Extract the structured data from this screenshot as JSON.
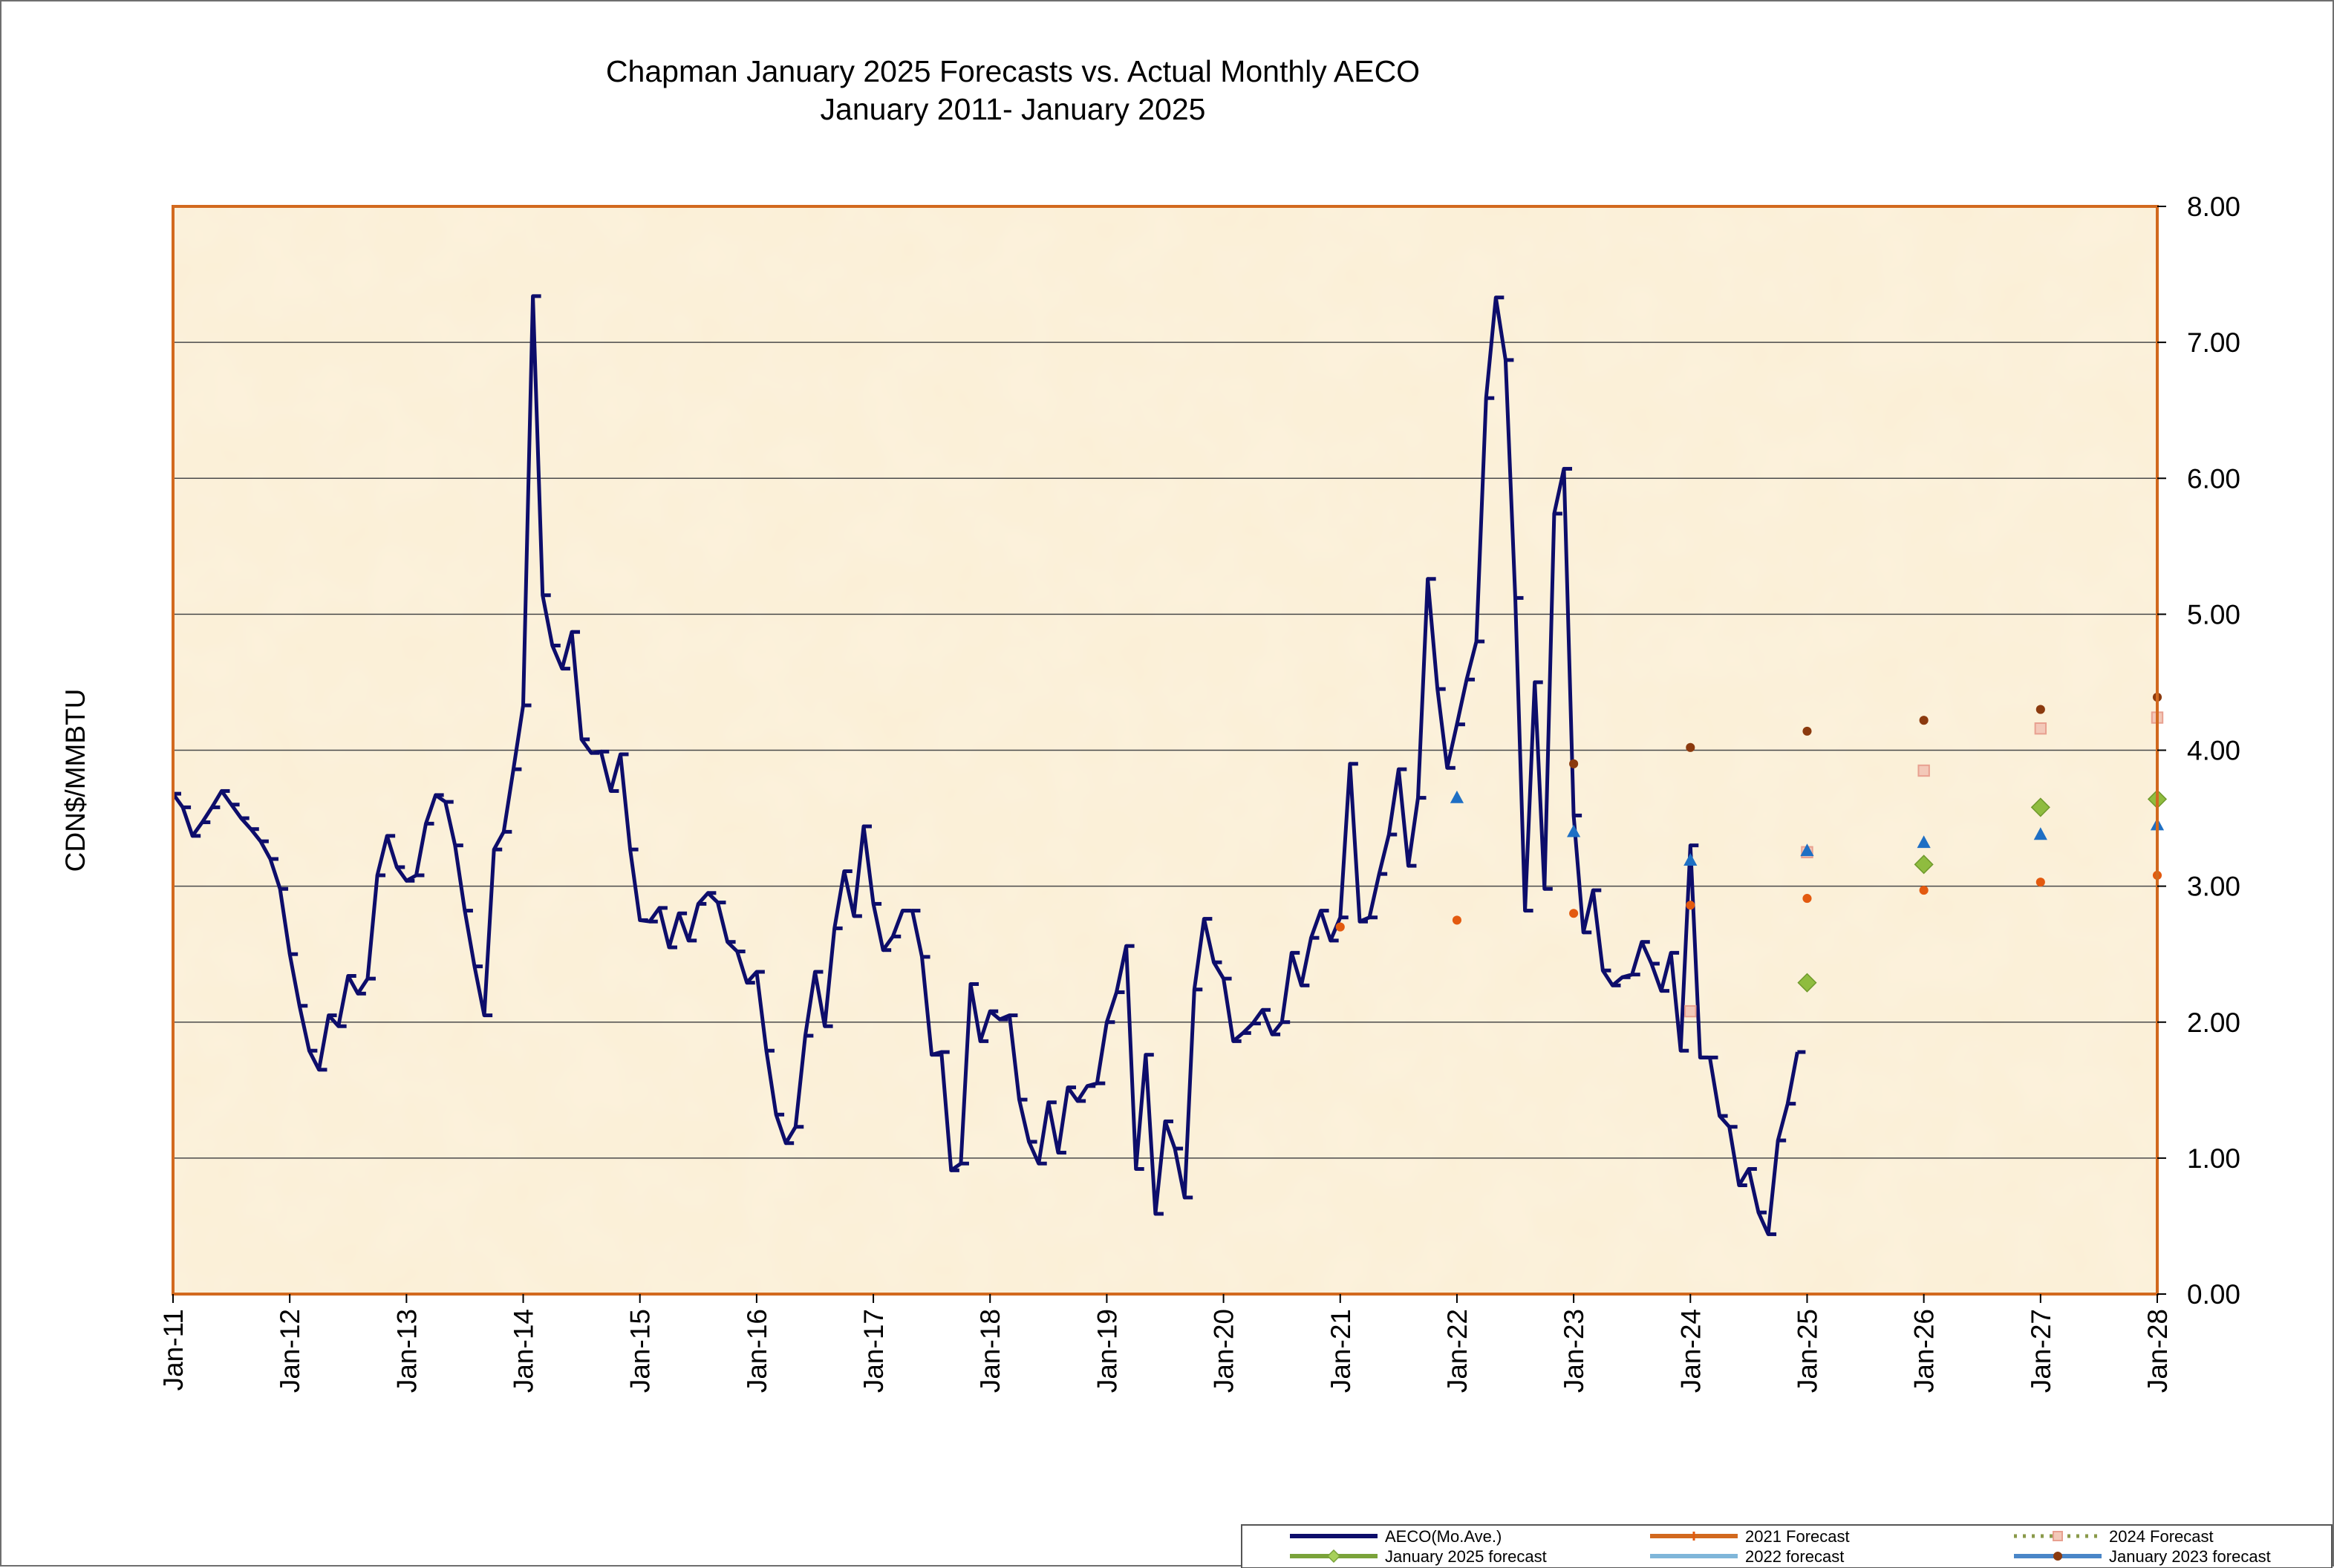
{
  "chart_data": {
    "type": "line",
    "title": "Chapman January 2025 Forecasts vs. Actual Monthly AECO",
    "subtitle": "January 2011- January 2025",
    "ylabel": "CDN$/MMBTU",
    "xlabel": "",
    "ylim": [
      0,
      8
    ],
    "y_ticks": [
      "0.00",
      "1.00",
      "2.00",
      "3.00",
      "4.00",
      "5.00",
      "6.00",
      "7.00",
      "8.00"
    ],
    "y_axis_side": "right",
    "x_ticks": [
      "Jan-11",
      "Jan-12",
      "Jan-13",
      "Jan-14",
      "Jan-15",
      "Jan-16",
      "Jan-17",
      "Jan-18",
      "Jan-19",
      "Jan-20",
      "Jan-21",
      "Jan-22",
      "Jan-23",
      "Jan-24",
      "Jan-25",
      "Jan-26",
      "Jan-27",
      "Jan-28"
    ],
    "x_start_year": 2011,
    "grid": "horizontal",
    "legend_position": "bottom-right",
    "plot_background": "#fbefd6",
    "plot_border_color": "#d2691e",
    "series": [
      {
        "name": "AECO(Mo.Ave.)",
        "kind": "line",
        "color": "#0d0d6b",
        "values": [
          3.68,
          3.58,
          3.37,
          3.47,
          3.58,
          3.7,
          3.6,
          3.5,
          3.42,
          3.33,
          3.2,
          2.98,
          2.5,
          2.12,
          1.79,
          1.65,
          2.05,
          1.97,
          2.34,
          2.21,
          2.32,
          3.08,
          3.37,
          3.14,
          3.04,
          3.08,
          3.46,
          3.67,
          3.62,
          3.3,
          2.82,
          2.41,
          2.05,
          3.27,
          3.4,
          3.86,
          4.33,
          7.34,
          5.14,
          4.77,
          4.6,
          4.87,
          4.08,
          3.98,
          3.99,
          3.7,
          3.97,
          3.27,
          2.75,
          2.74,
          2.84,
          2.55,
          2.8,
          2.6,
          2.87,
          2.95,
          2.88,
          2.59,
          2.52,
          2.29,
          2.37,
          1.79,
          1.32,
          1.11,
          1.23,
          1.9,
          2.37,
          1.97,
          2.69,
          3.11,
          2.78,
          3.44,
          2.87,
          2.53,
          2.63,
          2.82,
          2.82,
          2.48,
          1.76,
          1.78,
          0.91,
          0.96,
          2.28,
          1.86,
          2.08,
          2.02,
          2.05,
          1.43,
          1.12,
          0.96,
          1.41,
          1.04,
          1.52,
          1.42,
          1.53,
          1.55,
          2.0,
          2.22,
          2.56,
          0.92,
          1.76,
          0.59,
          1.27,
          1.07,
          0.71,
          2.24,
          2.76,
          2.44,
          2.32,
          1.86,
          1.92,
          1.99,
          2.09,
          1.91,
          2.0,
          2.51,
          2.27,
          2.62,
          2.82,
          2.6,
          2.77,
          3.9,
          2.74,
          2.77,
          3.09,
          3.38,
          3.86,
          3.15,
          3.65,
          5.26,
          4.45,
          3.87,
          4.19,
          4.52,
          4.8,
          6.59,
          7.33,
          6.87,
          5.12,
          2.82,
          4.5,
          2.98,
          5.74,
          6.07,
          3.52,
          2.66,
          2.97,
          2.38,
          2.27,
          2.33,
          2.35,
          2.59,
          2.43,
          2.23,
          2.51,
          1.79,
          3.3,
          1.74,
          1.74,
          1.31,
          1.23,
          0.8,
          0.92,
          0.6,
          0.44,
          1.13,
          1.4,
          1.78
        ]
      },
      {
        "name": "2021 Forecast",
        "kind": "markers",
        "marker": "circle",
        "color": "#e35a0f",
        "points": [
          [
            2021,
            2.7
          ],
          [
            2022,
            2.75
          ],
          [
            2023,
            2.8
          ],
          [
            2024,
            2.86
          ],
          [
            2025,
            2.91
          ],
          [
            2026,
            2.97
          ],
          [
            2027,
            3.03
          ],
          [
            2028,
            3.08
          ]
        ]
      },
      {
        "name": "2024 Forecast",
        "kind": "markers",
        "marker": "square",
        "color": "#e8a090",
        "points": [
          [
            2024,
            2.08
          ],
          [
            2025,
            3.25
          ],
          [
            2026,
            3.85
          ],
          [
            2027,
            4.16
          ],
          [
            2028,
            4.24
          ]
        ]
      },
      {
        "name": "January 2025 forecast",
        "kind": "markers",
        "marker": "diamond",
        "color": "#8fbc3f",
        "points": [
          [
            2025,
            2.29
          ],
          [
            2026,
            3.16
          ],
          [
            2027,
            3.58
          ],
          [
            2028,
            3.64
          ]
        ]
      },
      {
        "name": "2022 forecast",
        "kind": "markers",
        "marker": "triangle",
        "color": "#1e6fc4",
        "points": [
          [
            2022,
            3.65
          ],
          [
            2023,
            3.4
          ],
          [
            2024,
            3.19
          ],
          [
            2025,
            3.26
          ],
          [
            2026,
            3.32
          ],
          [
            2027,
            3.38
          ],
          [
            2028,
            3.45
          ]
        ]
      },
      {
        "name": "January  2023 forecast",
        "kind": "markers",
        "marker": "circle",
        "color": "#8b3a0e",
        "points": [
          [
            2023,
            3.9
          ],
          [
            2024,
            4.02
          ],
          [
            2025,
            4.14
          ],
          [
            2026,
            4.22
          ],
          [
            2027,
            4.3
          ],
          [
            2028,
            4.39
          ]
        ]
      }
    ]
  },
  "legend": {
    "items": [
      {
        "label": "AECO(Mo.Ave.)",
        "style": "line",
        "color": "#0d0d6b",
        "marker": "none"
      },
      {
        "label": "2021 Forecast",
        "style": "line",
        "color": "#d2691e",
        "marker": "dash"
      },
      {
        "label": "2024 Forecast",
        "style": "dotted",
        "color": "#8a9a4a",
        "marker": "square"
      },
      {
        "label": "January 2025 forecast",
        "style": "line",
        "color": "#7aa33a",
        "marker": "diamond"
      },
      {
        "label": "2022 forecast",
        "style": "line",
        "color": "#7fb6d9",
        "marker": "none"
      },
      {
        "label": "January  2023 forecast",
        "style": "line",
        "color": "#4a86c8",
        "marker": "circle"
      }
    ]
  }
}
